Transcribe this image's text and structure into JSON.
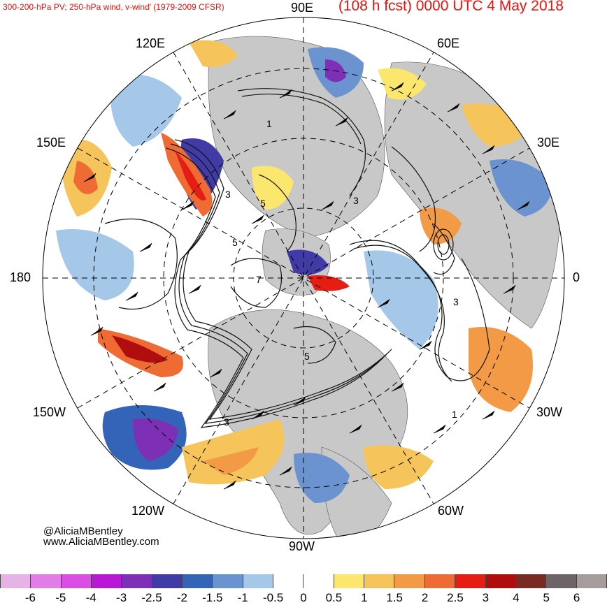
{
  "title_left": "300-200-hPa PV; 250-hPa wind, v-wind' (1979-2009 CFSR)",
  "title_right": "(108 h fcst) 0000 UTC 4 May 2018",
  "longitude_labels": {
    "lon_90E": "90E",
    "lon_60E": "60E",
    "lon_120E": "120E",
    "lon_30E": "30E",
    "lon_150E": "150E",
    "lon_0": "0",
    "lon_180": "180",
    "lon_150W": "150W",
    "lon_30W": "30W",
    "lon_120W": "120W",
    "lon_60W": "60W",
    "lon_90W": "90W"
  },
  "contour_labels": [
    "3",
    "3",
    "5",
    "5",
    "1",
    "1",
    "3",
    "3",
    "5",
    "7"
  ],
  "credits": {
    "twitter": "@AliciaMBentley",
    "website": "www.AliciaMBentley.com"
  },
  "colorbar": {
    "colors": [
      "#e6b3e6",
      "#e27ce6",
      "#d94fe3",
      "#b817d6",
      "#7d2fb5",
      "#413ba6",
      "#3464b8",
      "#6a93d0",
      "#a5c8e8",
      "#ffffff",
      "#ffffff",
      "#fbe76d",
      "#f5c45a",
      "#f29a46",
      "#ee6c33",
      "#e51e13",
      "#b00e0e",
      "#7a2a22",
      "#6e6367",
      "#a69c9c"
    ],
    "tick_labels": [
      "-6",
      "-5",
      "-4",
      "-3",
      "-2.5",
      "-2",
      "-1.5",
      "-1",
      "-0.5",
      "0",
      "0.5",
      "1",
      "1.5",
      "2",
      "2.5",
      "3",
      "4",
      "5",
      "6"
    ]
  },
  "map_colors": {
    "land": "#c8c8c8",
    "ocean": "#ffffff",
    "contour": "#111111",
    "grid": "#000000"
  }
}
